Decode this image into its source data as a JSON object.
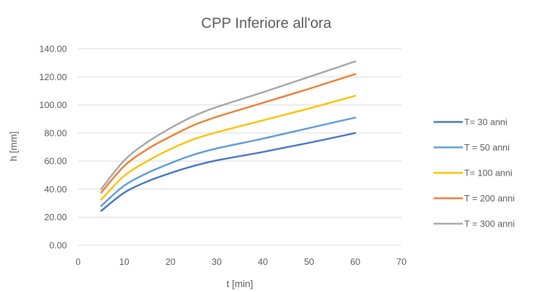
{
  "chart_data": {
    "type": "line",
    "title": "CPP Inferiore all'ora",
    "xlabel": "t [min]",
    "ylabel": "h [mm]",
    "xlim": [
      0,
      70
    ],
    "ylim": [
      0,
      140
    ],
    "x_ticks": [
      "0",
      "10",
      "20",
      "30",
      "40",
      "50",
      "60",
      "70"
    ],
    "y_ticks": [
      "0.00",
      "20.00",
      "40.00",
      "60.00",
      "80.00",
      "100.00",
      "120.00",
      "140.00"
    ],
    "grid": "horizontal",
    "legend": "right",
    "x": [
      5,
      10,
      15,
      20,
      25,
      30,
      40,
      50,
      60
    ],
    "series": [
      {
        "name": "T= 30 anni",
        "color": "#4472C4",
        "values": [
          24.5,
          37.5,
          45.5,
          51.5,
          56.5,
          60.5,
          66.5,
          73.0,
          80.0
        ]
      },
      {
        "name": "T = 50 anni",
        "color": "#5B9BD5",
        "values": [
          28.0,
          42.5,
          51.5,
          58.5,
          64.5,
          69.0,
          76.0,
          83.5,
          91.0
        ]
      },
      {
        "name": "T= 100  anni",
        "color": "#FFC000",
        "values": [
          32.5,
          49.5,
          60.0,
          68.5,
          75.5,
          80.5,
          89.0,
          97.5,
          106.5
        ]
      },
      {
        "name": "T = 200 anni",
        "color": "#ED7D31",
        "values": [
          37.5,
          56.5,
          68.5,
          77.5,
          85.5,
          91.5,
          101.5,
          111.5,
          122.0
        ]
      },
      {
        "name": "T = 300 anni",
        "color": "#A5A5A5",
        "values": [
          40.0,
          60.5,
          73.5,
          83.5,
          92.0,
          98.5,
          109.0,
          120.0,
          131.0
        ]
      }
    ]
  }
}
